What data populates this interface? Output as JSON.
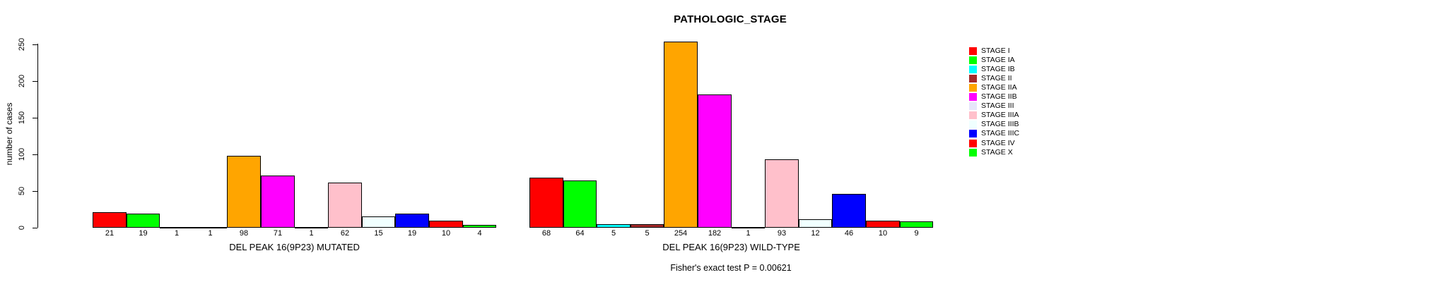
{
  "chart_data": {
    "type": "bar",
    "title": "PATHOLOGIC_STAGE",
    "ylabel": "number of cases",
    "ylim": [
      0,
      250
    ],
    "yticks": [
      0,
      50,
      100,
      150,
      200,
      250
    ],
    "grid": false,
    "legend_position": "right",
    "annotation": "Fisher's exact test P = 0.00621",
    "categories": [
      "STAGE I",
      "STAGE IA",
      "STAGE IB",
      "STAGE II",
      "STAGE IIA",
      "STAGE IIB",
      "STAGE III",
      "STAGE IIIA",
      "STAGE IIIB",
      "STAGE IIIC",
      "STAGE IV",
      "STAGE X"
    ],
    "colors": [
      "#FF0000",
      "#00FF00",
      "#00FFFF",
      "#A52A2A",
      "#FFA500",
      "#FF00FF",
      "#E6E6FA",
      "#FFC0CB",
      "#F0FFFF",
      "#0000FF",
      "#FF0000",
      "#00FF00"
    ],
    "bar_border_color": "#000000",
    "groups": [
      {
        "label": "DEL PEAK 16(9P23) MUTATED",
        "values": [
          21,
          19,
          1,
          1,
          98,
          71,
          1,
          62,
          15,
          19,
          10,
          4
        ]
      },
      {
        "label": "DEL PEAK 16(9P23) WILD-TYPE",
        "values": [
          68,
          64,
          5,
          5,
          254,
          182,
          1,
          93,
          12,
          46,
          10,
          9
        ]
      }
    ]
  }
}
